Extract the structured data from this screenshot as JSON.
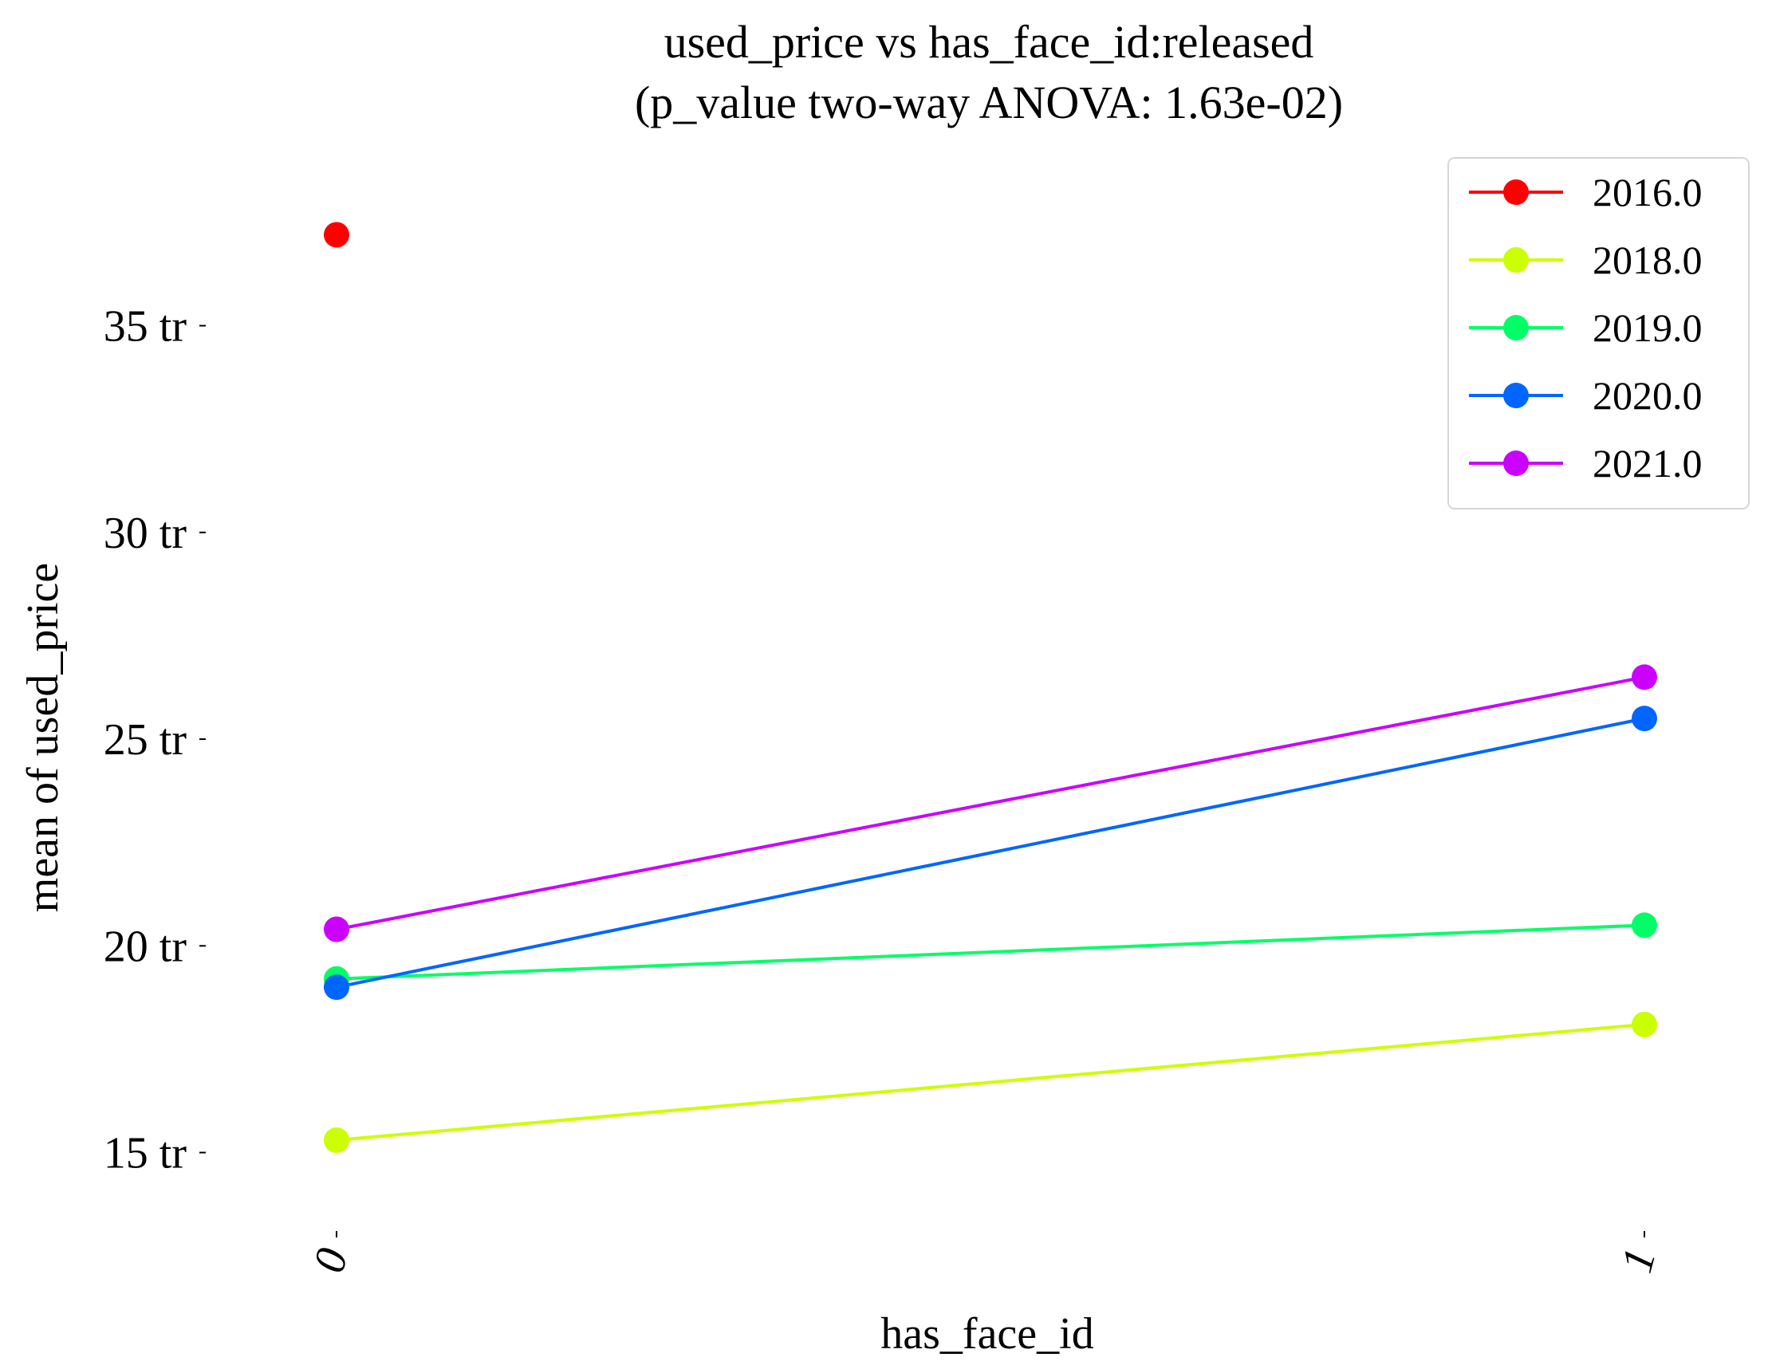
{
  "chart_data": {
    "type": "line",
    "title": "used_price vs has_face_id:released",
    "subtitle": "(p_value two-way ANOVA: 1.63e-02)",
    "xlabel": "has_face_id",
    "ylabel": "mean of used_price",
    "categories": [
      "0",
      "1"
    ],
    "ylim": [
      12.6,
      39.6
    ],
    "y_ticks": [
      15,
      20,
      25,
      30,
      35
    ],
    "y_tick_labels": [
      "15 tr",
      "20 tr",
      "25 tr",
      "30 tr",
      "35 tr"
    ],
    "grid": false,
    "legend_position": "top-right",
    "series": [
      {
        "name": "2016.0",
        "color": "#ff0000",
        "values": [
          37.2,
          null
        ]
      },
      {
        "name": "2018.0",
        "color": "#ccff00",
        "values": [
          15.3,
          18.1
        ]
      },
      {
        "name": "2019.0",
        "color": "#00ff66",
        "values": [
          19.2,
          20.5
        ]
      },
      {
        "name": "2020.0",
        "color": "#0066ff",
        "values": [
          19.0,
          25.5
        ]
      },
      {
        "name": "2021.0",
        "color": "#cc00ff",
        "values": [
          20.4,
          26.5
        ]
      }
    ]
  }
}
